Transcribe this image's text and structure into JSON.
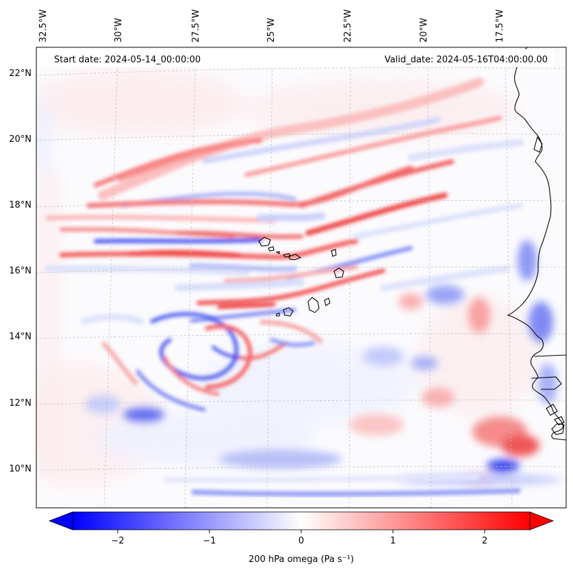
{
  "header": {
    "start_date": "Start date: 2024-05-14_00:00:00",
    "valid_date": "Valid_date: 2024-05-16T04:00:00.00"
  },
  "map": {
    "lon_labels": [
      "32.5°W",
      "30°W",
      "27.5°W",
      "25°W",
      "22.5°W",
      "20°W",
      "17.5°W"
    ],
    "lat_labels": [
      "22°N",
      "20°N",
      "18°N",
      "16°N",
      "14°N",
      "12°N",
      "10°N"
    ],
    "colors": {
      "positive": "#ff0000",
      "negative": "#0000ff",
      "neutral": "#ffffff",
      "coastline": "#000000",
      "gridline": "#b0b0b0"
    }
  },
  "colorbar": {
    "ticks": [
      "−2",
      "−1",
      "0",
      "1",
      "2"
    ],
    "label": "200 hPa omega (Pa s⁻¹)",
    "range": [
      -2.5,
      2.5
    ],
    "cmap": "bwr",
    "extend": "both"
  }
}
